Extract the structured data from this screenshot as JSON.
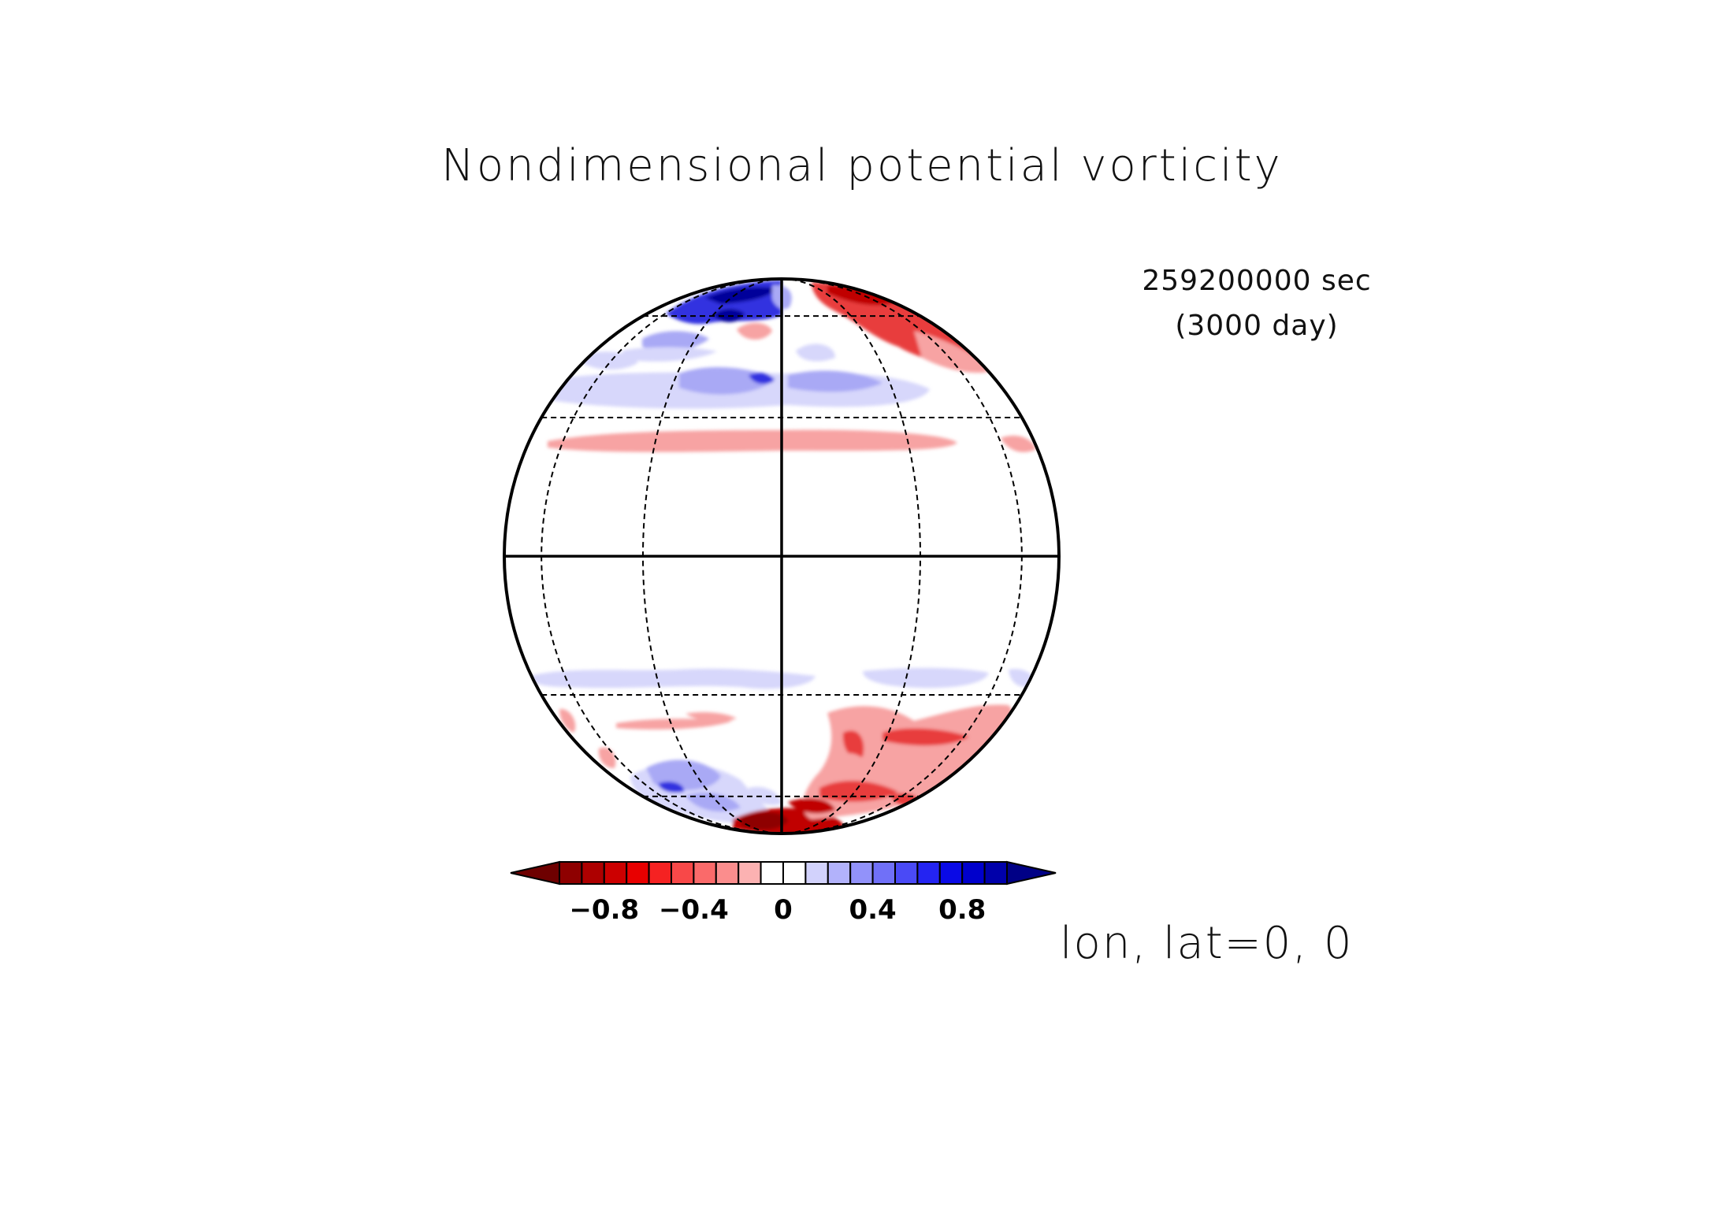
{
  "figure": {
    "title": "Nondimensional potential vorticity",
    "time_seconds": "259200000 sec",
    "time_days": "(3000 day)",
    "projection_label": "lon, lat=0, 0"
  },
  "colorbar": {
    "tick_labels": [
      "−0.8",
      "−0.4",
      "0",
      "0.4",
      "0.8"
    ],
    "tick_values": [
      -0.8,
      -0.4,
      0,
      0.4,
      0.8
    ],
    "level_min": -1.0,
    "level_max": 1.0,
    "level_step": 0.1,
    "colors": [
      "#6e0000",
      "#8e0000",
      "#ad0000",
      "#cc0000",
      "#e80000",
      "#f52222",
      "#f84848",
      "#fa6a6a",
      "#fb8d8d",
      "#fcb2b2",
      "#ffffff",
      "#ffffff",
      "#d2d2fc",
      "#b2b2fb",
      "#9292fa",
      "#7070f8",
      "#4a4af6",
      "#2424f2",
      "#0a0ae6",
      "#0000cc",
      "#0000aa",
      "#000086"
    ]
  },
  "map": {
    "type": "orthographic",
    "center_lon": 0,
    "center_lat": 0,
    "graticule_lats": [
      -60,
      -30,
      30,
      60
    ],
    "graticule_lons": [
      -60,
      -30,
      30,
      60
    ],
    "field_colors": {
      "strong_negative": "#c00000",
      "negative": "#e83c3c",
      "weak_negative": "#f7a3a3",
      "weak_positive": "#d7d7fb",
      "positive": "#a9a9f5",
      "strong_positive": "#3030e0",
      "very_strong_positive": "#00009a"
    }
  }
}
